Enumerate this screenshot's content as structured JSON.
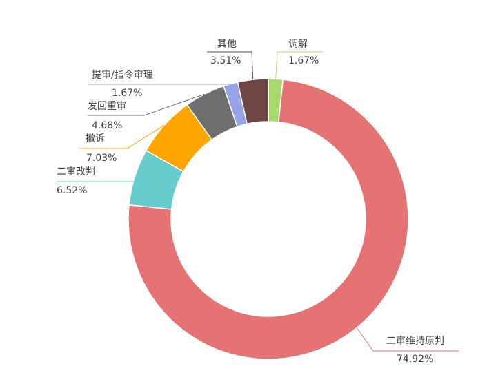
{
  "chart_data": {
    "type": "pie",
    "donut": true,
    "legend": "none",
    "slices": [
      {
        "label": "调解",
        "percent_label": "1.67%",
        "value": 1.67,
        "color": "#a9d86e"
      },
      {
        "label": "二审维持原判",
        "percent_label": "74.92%",
        "value": 74.92,
        "color": "#e57373"
      },
      {
        "label": "二审改判",
        "percent_label": "6.52%",
        "value": 6.52,
        "color": "#66cccc"
      },
      {
        "label": "撤诉",
        "percent_label": "7.03%",
        "value": 7.03,
        "color": "#ffa500"
      },
      {
        "label": "发回重审",
        "percent_label": "4.68%",
        "value": 4.68,
        "color": "#6e6e6e"
      },
      {
        "label": "提审/指令审理",
        "percent_label": "1.67%",
        "value": 1.67,
        "color": "#96a3e6"
      },
      {
        "label": "其他",
        "percent_label": "3.51%",
        "value": 3.51,
        "color": "#6e4646"
      }
    ]
  }
}
